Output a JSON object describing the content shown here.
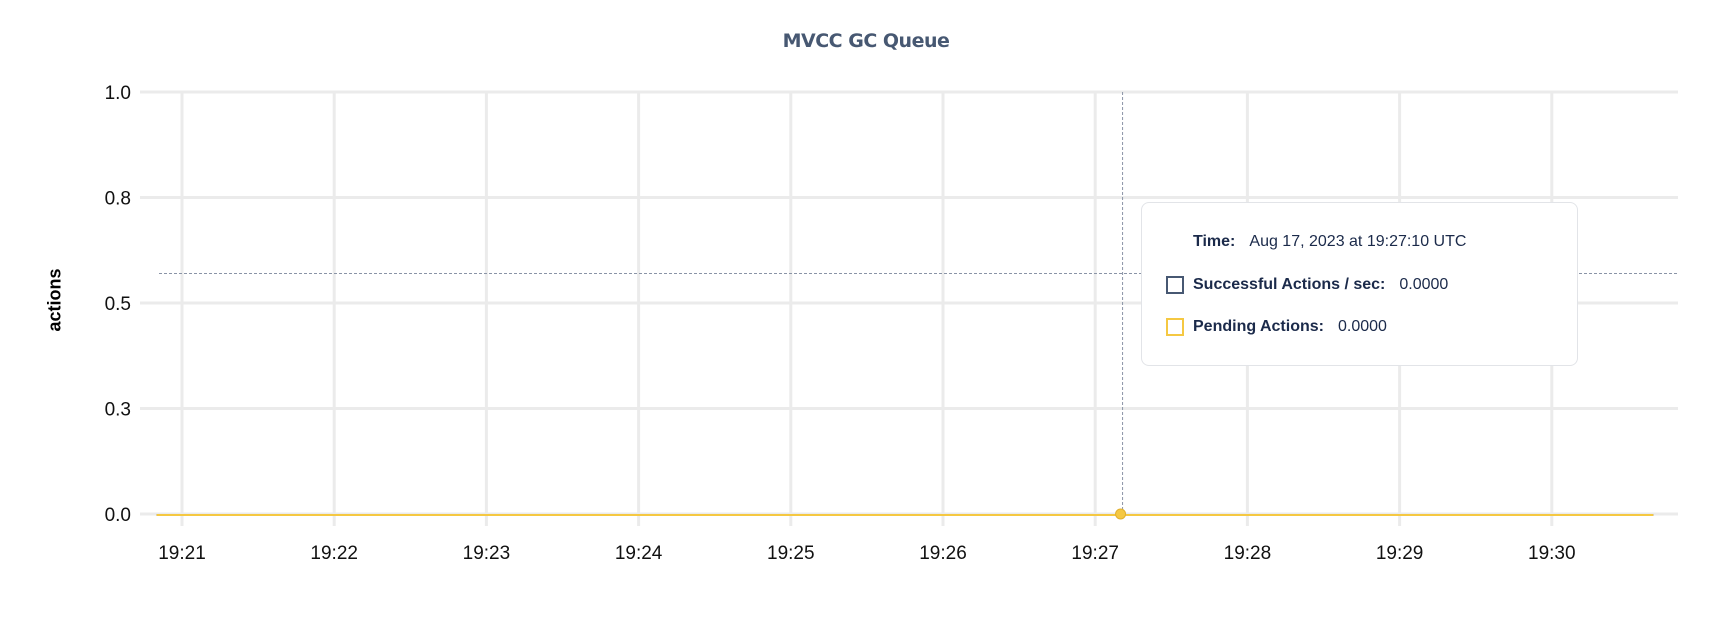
{
  "chart_data": {
    "type": "line",
    "title": "MVCC GC Queue",
    "ylabel": "actions",
    "xlabel": "",
    "ylim": [
      0,
      1
    ],
    "y_ticks": [
      "0.0",
      "0.3",
      "0.5",
      "0.8",
      "1.0"
    ],
    "y_tick_values": [
      0,
      0.25,
      0.5,
      0.75,
      1.0
    ],
    "x_ticks": [
      "19:21",
      "19:22",
      "19:23",
      "19:24",
      "19:25",
      "19:26",
      "19:27",
      "19:28",
      "19:29",
      "19:30"
    ],
    "x_range": [
      "19:20:50",
      "19:30:40"
    ],
    "grid": true,
    "series": [
      {
        "name": "Successful Actions / sec",
        "color": "#475872",
        "x": [
          "19:20:50",
          "19:30:40"
        ],
        "values": [
          0,
          0
        ]
      },
      {
        "name": "Pending Actions",
        "color": "#f5c842",
        "x": [
          "19:20:50",
          "19:30:40"
        ],
        "values": [
          0,
          0
        ]
      }
    ],
    "hover": {
      "time": "19:27:10",
      "crosshair_y_value": 0.57
    }
  },
  "tooltip": {
    "time_label": "Time:",
    "time_value": "Aug 17, 2023 at 19:27:10 UTC",
    "rows": [
      {
        "label": "Successful Actions / sec:",
        "value": "0.0000",
        "color": "#475872"
      },
      {
        "label": "Pending Actions:",
        "value": "0.0000",
        "color": "#f5c842"
      }
    ]
  }
}
